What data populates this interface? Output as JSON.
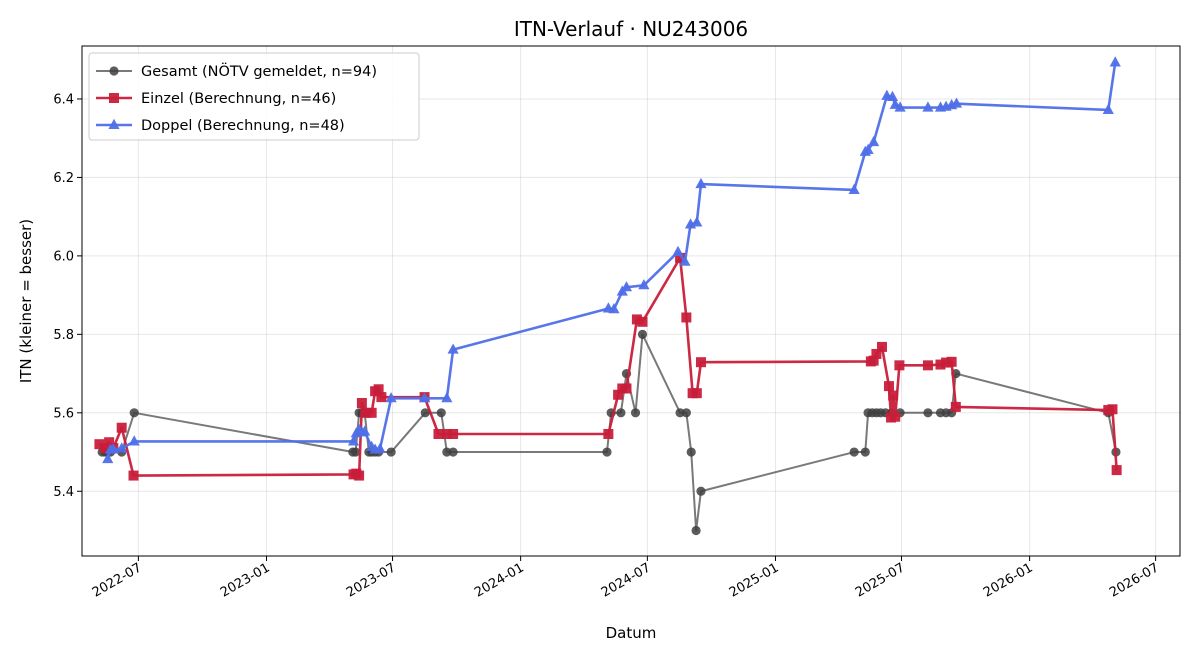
{
  "chart_data": {
    "type": "line",
    "title": "ITN-Verlauf · NU243006",
    "xlabel": "Datum",
    "ylabel": "ITN  (kleiner = besser)",
    "xlim": [
      "2022-04-11",
      "2026-08-05"
    ],
    "ylim": [
      5.235,
      6.535
    ],
    "x_ticks": [
      "2022-07",
      "2023-01",
      "2023-07",
      "2024-01",
      "2024-07",
      "2025-01",
      "2025-07",
      "2026-01",
      "2026-07"
    ],
    "y_ticks": [
      5.4,
      5.6,
      5.8,
      6.0,
      6.2,
      6.4
    ],
    "grid": true,
    "legend_position": "upper-left",
    "series": [
      {
        "name": "Gesamt (NÖTV gemeldet, n=94)",
        "color": "#404040",
        "marker": "circle",
        "points": [
          [
            "2022-05-10",
            5.5
          ],
          [
            "2022-05-14",
            5.5
          ],
          [
            "2022-05-18",
            5.5
          ],
          [
            "2022-05-22",
            5.5
          ],
          [
            "2022-06-07",
            5.5
          ],
          [
            "2022-06-25",
            5.6
          ],
          [
            "2023-05-05",
            5.5
          ],
          [
            "2023-05-09",
            5.5
          ],
          [
            "2023-05-14",
            5.6
          ],
          [
            "2023-05-18",
            5.6
          ],
          [
            "2023-05-22",
            5.6
          ],
          [
            "2023-05-28",
            5.5
          ],
          [
            "2023-06-01",
            5.5
          ],
          [
            "2023-06-06",
            5.5
          ],
          [
            "2023-06-11",
            5.5
          ],
          [
            "2023-06-29",
            5.5
          ],
          [
            "2023-08-17",
            5.6
          ],
          [
            "2023-09-09",
            5.6
          ],
          [
            "2023-09-17",
            5.5
          ],
          [
            "2023-09-26",
            5.5
          ],
          [
            "2024-05-04",
            5.5
          ],
          [
            "2024-05-10",
            5.6
          ],
          [
            "2024-05-24",
            5.6
          ],
          [
            "2024-06-01",
            5.7
          ],
          [
            "2024-06-14",
            5.6
          ],
          [
            "2024-06-24",
            5.8
          ],
          [
            "2024-08-17",
            5.6
          ],
          [
            "2024-08-26",
            5.6
          ],
          [
            "2024-09-02",
            5.5
          ],
          [
            "2024-09-09",
            5.3
          ],
          [
            "2024-09-16",
            5.4
          ],
          [
            "2025-04-24",
            5.5
          ],
          [
            "2025-05-10",
            5.5
          ],
          [
            "2025-05-14",
            5.6
          ],
          [
            "2025-05-20",
            5.6
          ],
          [
            "2025-05-26",
            5.6
          ],
          [
            "2025-06-01",
            5.6
          ],
          [
            "2025-06-08",
            5.6
          ],
          [
            "2025-06-17",
            5.6
          ],
          [
            "2025-06-29",
            5.6
          ],
          [
            "2025-08-08",
            5.6
          ],
          [
            "2025-08-26",
            5.6
          ],
          [
            "2025-09-03",
            5.6
          ],
          [
            "2025-09-11",
            5.6
          ],
          [
            "2025-09-17",
            5.7
          ],
          [
            "2026-04-24",
            5.6
          ],
          [
            "2026-05-05",
            5.5
          ]
        ]
      },
      {
        "name": "Einzel (Berechnung, n=46)",
        "color": "#c81e3a",
        "marker": "square",
        "points": [
          [
            "2022-05-06",
            5.52
          ],
          [
            "2022-05-14",
            5.51
          ],
          [
            "2022-05-20",
            5.525
          ],
          [
            "2022-05-26",
            5.51
          ],
          [
            "2022-06-07",
            5.562
          ],
          [
            "2022-06-24",
            5.44
          ],
          [
            "2023-05-06",
            5.443
          ],
          [
            "2023-05-10",
            5.445
          ],
          [
            "2023-05-14",
            5.44
          ],
          [
            "2023-05-18",
            5.625
          ],
          [
            "2023-05-24",
            5.6
          ],
          [
            "2023-06-01",
            5.6
          ],
          [
            "2023-06-06",
            5.655
          ],
          [
            "2023-06-11",
            5.66
          ],
          [
            "2023-06-15",
            5.64
          ],
          [
            "2023-08-16",
            5.64
          ],
          [
            "2023-09-05",
            5.546
          ],
          [
            "2023-09-17",
            5.546
          ],
          [
            "2023-09-26",
            5.546
          ],
          [
            "2024-05-06",
            5.546
          ],
          [
            "2024-05-20",
            5.646
          ],
          [
            "2024-05-26",
            5.662
          ],
          [
            "2024-06-01",
            5.662
          ],
          [
            "2024-06-16",
            5.838
          ],
          [
            "2024-06-24",
            5.832
          ],
          [
            "2024-08-17",
            5.995
          ],
          [
            "2024-08-26",
            5.843
          ],
          [
            "2024-09-04",
            5.65
          ],
          [
            "2024-09-10",
            5.65
          ],
          [
            "2024-09-16",
            5.729
          ],
          [
            "2025-05-18",
            5.731
          ],
          [
            "2025-05-22",
            5.733
          ],
          [
            "2025-05-26",
            5.75
          ],
          [
            "2025-06-03",
            5.768
          ],
          [
            "2025-06-13",
            5.668
          ],
          [
            "2025-06-16",
            5.588
          ],
          [
            "2025-06-19",
            5.644
          ],
          [
            "2025-06-22",
            5.59
          ],
          [
            "2025-06-28",
            5.721
          ],
          [
            "2025-08-08",
            5.721
          ],
          [
            "2025-08-26",
            5.723
          ],
          [
            "2025-09-03",
            5.728
          ],
          [
            "2025-09-11",
            5.73
          ],
          [
            "2025-09-17",
            5.615
          ],
          [
            "2026-04-24",
            5.607
          ],
          [
            "2026-04-30",
            5.609
          ],
          [
            "2026-05-06",
            5.454
          ]
        ]
      },
      {
        "name": "Doppel (Berechnung, n=48)",
        "color": "#4f6fe8",
        "marker": "triangle",
        "points": [
          [
            "2022-05-18",
            5.482
          ],
          [
            "2022-05-22",
            5.506
          ],
          [
            "2022-05-26",
            5.507
          ],
          [
            "2022-06-07",
            5.509
          ],
          [
            "2022-06-25",
            5.527
          ],
          [
            "2023-05-06",
            5.527
          ],
          [
            "2023-05-10",
            5.548
          ],
          [
            "2023-05-14",
            5.556
          ],
          [
            "2023-05-18",
            5.55
          ],
          [
            "2023-05-22",
            5.552
          ],
          [
            "2023-06-01",
            5.513
          ],
          [
            "2023-06-06",
            5.506
          ],
          [
            "2023-06-13",
            5.508
          ],
          [
            "2023-06-29",
            5.637
          ],
          [
            "2023-08-16",
            5.637
          ],
          [
            "2023-09-17",
            5.637
          ],
          [
            "2023-09-26",
            5.761
          ],
          [
            "2024-05-06",
            5.866
          ],
          [
            "2024-05-14",
            5.864
          ],
          [
            "2024-05-26",
            5.909
          ],
          [
            "2024-06-01",
            5.92
          ],
          [
            "2024-06-26",
            5.925
          ],
          [
            "2024-08-14",
            6.01
          ],
          [
            "2024-08-24",
            5.985
          ],
          [
            "2024-09-01",
            6.08
          ],
          [
            "2024-09-10",
            6.085
          ],
          [
            "2024-09-16",
            6.183
          ],
          [
            "2025-04-24",
            6.168
          ],
          [
            "2025-05-10",
            6.265
          ],
          [
            "2025-05-14",
            6.27
          ],
          [
            "2025-05-22",
            6.29
          ],
          [
            "2025-06-10",
            6.408
          ],
          [
            "2025-06-18",
            6.405
          ],
          [
            "2025-06-22",
            6.385
          ],
          [
            "2025-06-29",
            6.378
          ],
          [
            "2025-08-08",
            6.378
          ],
          [
            "2025-08-26",
            6.378
          ],
          [
            "2025-09-03",
            6.38
          ],
          [
            "2025-09-11",
            6.384
          ],
          [
            "2025-09-18",
            6.388
          ],
          [
            "2026-04-24",
            6.372
          ],
          [
            "2026-05-04",
            6.493
          ]
        ]
      }
    ]
  }
}
